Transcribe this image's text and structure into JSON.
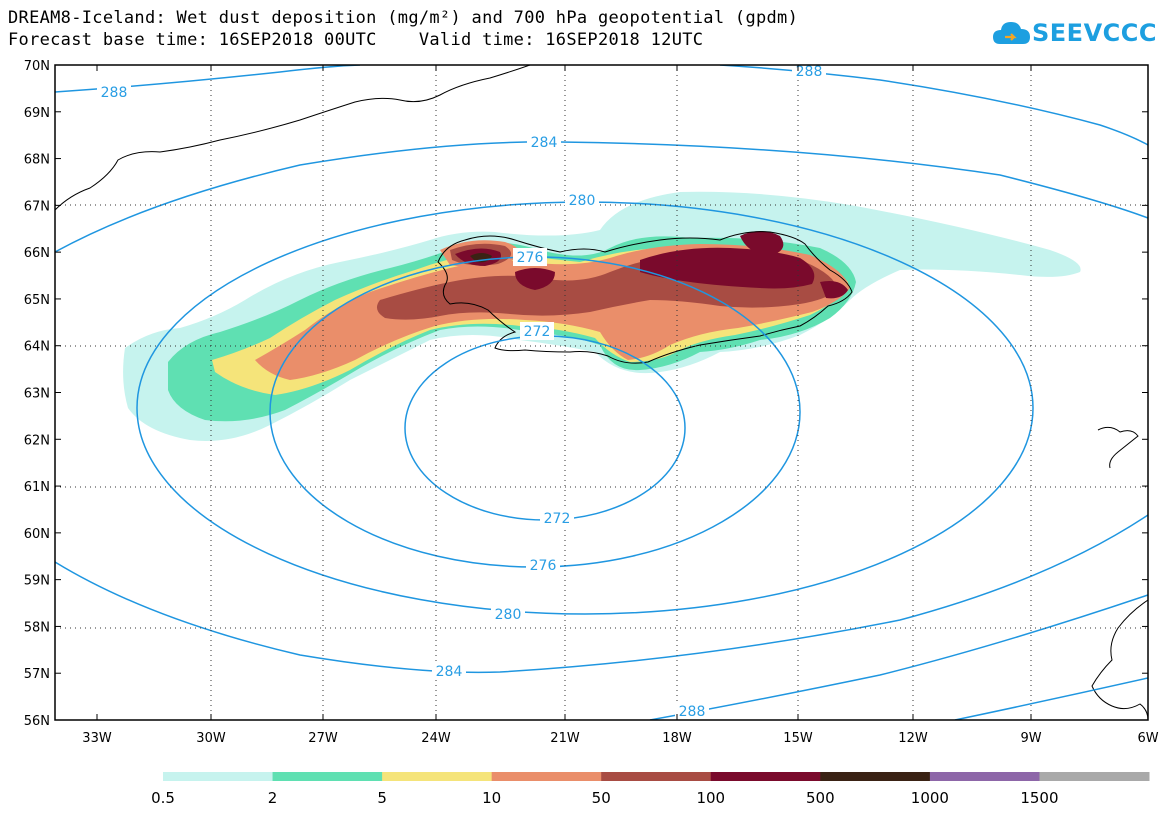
{
  "header": {
    "title": "DREAM8-Iceland: Wet dust deposition (mg/m²) and 700 hPa geopotential (gpdm)",
    "subtitle": "Forecast base time: 16SEP2018 00UTC    Valid time: 16SEP2018 12UTC",
    "logo_text": "SEEVCCC"
  },
  "map": {
    "lat_ticks": [
      "70N",
      "69N",
      "68N",
      "67N",
      "66N",
      "65N",
      "64N",
      "63N",
      "62N",
      "61N",
      "60N",
      "59N",
      "58N",
      "57N",
      "56N"
    ],
    "lon_ticks": [
      "33W",
      "30W",
      "27W",
      "24W",
      "21W",
      "18W",
      "15W",
      "12W",
      "9W",
      "6W"
    ],
    "contour_labels": [
      {
        "id": "c288a",
        "text": "288"
      },
      {
        "id": "c288b",
        "text": "288"
      },
      {
        "id": "c284a",
        "text": "284"
      },
      {
        "id": "c280a",
        "text": "280"
      },
      {
        "id": "c276a",
        "text": "276"
      },
      {
        "id": "c272a",
        "text": "272"
      },
      {
        "id": "c272b",
        "text": "272"
      },
      {
        "id": "c276b",
        "text": "276"
      },
      {
        "id": "c280b",
        "text": "280"
      },
      {
        "id": "c284b",
        "text": "284"
      },
      {
        "id": "c288c",
        "text": "288"
      }
    ],
    "contour_color": "#1f96e0"
  },
  "legend": {
    "bins": [
      {
        "color": "#c6f3ee",
        "label": "0.5"
      },
      {
        "color": "#5fe0b2",
        "label": "2"
      },
      {
        "color": "#f5e47a",
        "label": "5"
      },
      {
        "color": "#ea8e6a",
        "label": "10"
      },
      {
        "color": "#a84c43",
        "label": "50"
      },
      {
        "color": "#7a0a2c",
        "label": "100"
      },
      {
        "color": "#3a2214",
        "label": "500"
      },
      {
        "color": "#8d66a8",
        "label": "1000"
      },
      {
        "color": "#a9a9a9",
        "label": "1500"
      }
    ]
  }
}
